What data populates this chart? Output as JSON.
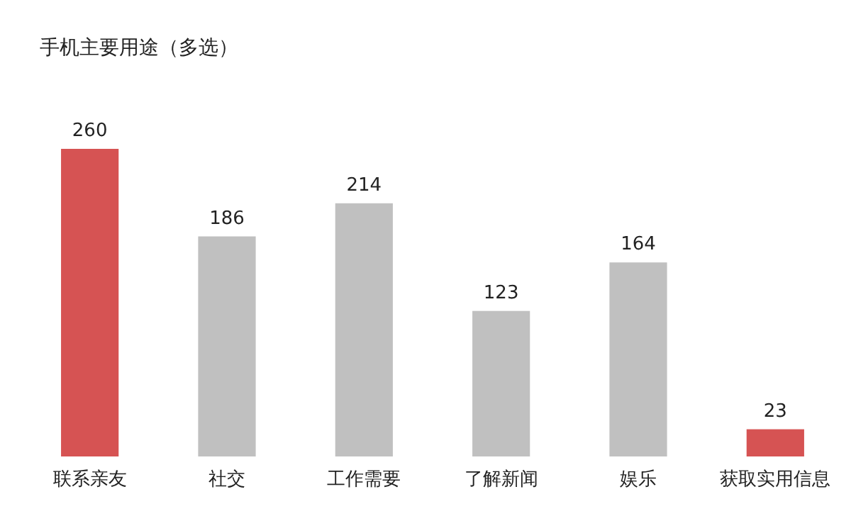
{
  "chart_data": {
    "type": "bar",
    "title": "手机主要用途（多选）",
    "categories": [
      "联系亲友",
      "社交",
      "工作需要",
      "了解新闻",
      "娱乐",
      "获取实用信息"
    ],
    "values": [
      260,
      186,
      214,
      123,
      164,
      23
    ],
    "colors": [
      "#d65353",
      "#c0c0c0",
      "#c0c0c0",
      "#c0c0c0",
      "#c0c0c0",
      "#d65353"
    ],
    "data_labels": true,
    "tick_labels": "x"
  }
}
